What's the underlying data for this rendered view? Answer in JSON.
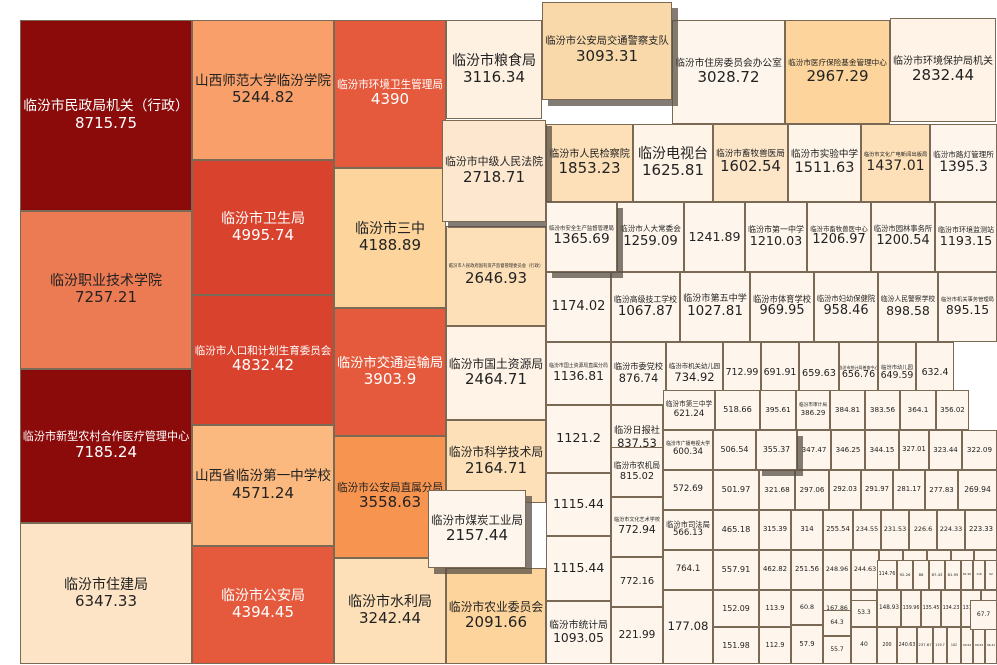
{
  "chart_data": {
    "type": "treemap",
    "title": "",
    "items": [
      {
        "name": "临汾市民政局机关（行政）",
        "value": 8715.75,
        "color": "#8b0a0a"
      },
      {
        "name": "临汾职业技术学院",
        "value": 7257.21,
        "color": "#ec7a52"
      },
      {
        "name": "临汾市新型农村合作医疗管理中心",
        "value": 7185.24,
        "color": "#8b0a0a"
      },
      {
        "name": "临汾市住建局",
        "value": 6347.33,
        "color": "#fde4c6"
      },
      {
        "name": "山西师范大学临汾学院",
        "value": 5244.82,
        "color": "#f89f6a"
      },
      {
        "name": "临汾市卫生局",
        "value": 4995.74,
        "color": "#d9432e"
      },
      {
        "name": "临汾市人口和计划生育委员会",
        "value": 4832.42,
        "color": "#d9432e"
      },
      {
        "name": "山西省临汾第一中学校",
        "value": 4571.24,
        "color": "#fbb97f"
      },
      {
        "name": "临汾市公安局",
        "value": 4394.45,
        "color": "#e55a3c"
      },
      {
        "name": "临汾市环境卫生管理局",
        "value": 4390,
        "color": "#e55a3c"
      },
      {
        "name": "临汾市三中",
        "value": 4188.89,
        "color": "#fcd49c"
      },
      {
        "name": "临汾市交通运输局",
        "value": 3903.9,
        "color": "#e55a3c"
      },
      {
        "name": "临汾市公安局直属分局",
        "value": 3558.63,
        "color": "#f7944f"
      },
      {
        "name": "临汾市水利局",
        "value": 3242.44,
        "color": "#fde0b8"
      },
      {
        "name": "临汾市粮食局",
        "value": 3116.34,
        "color": "#fef1e1"
      },
      {
        "name": "临汾市公安局交通警察支队",
        "value": 3093.31,
        "color": "#f9d9aa"
      },
      {
        "name": "临汾市住房委员会办公室",
        "value": 3028.72,
        "color": "#fef6ec"
      },
      {
        "name": "临汾市医疗保险基金管理中心",
        "value": 2967.29,
        "color": "#fcd49c"
      },
      {
        "name": "临汾市环境保护局机关",
        "value": 2832.44,
        "color": "#fef3e6"
      },
      {
        "name": "临汾市中级人民法院",
        "value": 2718.71,
        "color": "#fde8cf"
      },
      {
        "name": "临汾市人民检察院",
        "value": 1853.23,
        "color": "#fde0b8"
      },
      {
        "name": "临汾电视台",
        "value": 1625.81,
        "color": "#fef4e7"
      },
      {
        "name": "临汾市畜牧兽医局",
        "value": 1602.54,
        "color": "#fde6c8"
      },
      {
        "name": "临汾市实验中学",
        "value": 1511.63,
        "color": "#fef4e7"
      },
      {
        "name": "临汾市文化广电新闻出版局",
        "value": 1437.01,
        "color": "#fde0b8"
      },
      {
        "name": "临汾市路灯管理所",
        "value": 1395.3,
        "color": "#fef6ec"
      },
      {
        "name": "临汾市人民政府国有资产监督管理委员会（行政）",
        "value": 2646.93,
        "color": "#fde0b8"
      },
      {
        "name": "临汾市安全生产监督管理局",
        "value": 1365.69,
        "color": "#fef6ec"
      },
      {
        "name": "临汾市人大常委会",
        "value": 1259.09,
        "color": "#fef6ec"
      },
      {
        "name": "",
        "value": 1241.89,
        "color": "#fef6ec"
      },
      {
        "name": "临汾市第一中学",
        "value": 1210.03,
        "color": "#fef6ec"
      },
      {
        "name": "临汾市畜牧兽医中心",
        "value": 1206.97,
        "color": "#fef6ec"
      },
      {
        "name": "临汾市园林事务所",
        "value": 1200.54,
        "color": "#fef6ec"
      },
      {
        "name": "临汾市环境监测站",
        "value": 1193.15,
        "color": "#fef6ec"
      },
      {
        "name": "临汾市国土资源局",
        "value": 2464.71,
        "color": "#fef3e6"
      },
      {
        "name": "",
        "value": 1174.02,
        "color": "#fef6ec"
      },
      {
        "name": "临汾高级技工学校",
        "value": 1067.87,
        "color": "#fef6ec"
      },
      {
        "name": "临汾市第五中学",
        "value": 1027.81,
        "color": "#fef6ec"
      },
      {
        "name": "临汾市体育学校",
        "value": 969.95,
        "color": "#fef6ec"
      },
      {
        "name": "临汾市妇幼保健院",
        "value": 958.46,
        "color": "#fef6ec"
      },
      {
        "name": "临汾人民警察学校",
        "value": 898.58,
        "color": "#fef6ec"
      },
      {
        "name": "临汾市机关事务管理局",
        "value": 895.15,
        "color": "#fef6ec"
      },
      {
        "name": "临汾市科学技术局",
        "value": 2164.71,
        "color": "#fde0b8"
      },
      {
        "name": "临汾市国土资源局直属分局",
        "value": 1136.81,
        "color": "#fef6ec"
      },
      {
        "name": "临汾市委党校",
        "value": 876.74,
        "color": "#fef6ec"
      },
      {
        "name": "临汾市机关幼儿园",
        "value": 734.92,
        "color": "#fef6ec"
      },
      {
        "name": "",
        "value": 712.99,
        "color": "#fef6ec"
      },
      {
        "name": "",
        "value": 691.91,
        "color": "#fef6ec"
      },
      {
        "name": "",
        "value": 659.63,
        "color": "#fef6ec"
      },
      {
        "name": "临汾市统计局普查中心",
        "value": 656.76,
        "color": "#fef6ec"
      },
      {
        "name": "临汾市幼儿园",
        "value": 649.59,
        "color": "#fef6ec"
      },
      {
        "name": "",
        "value": 632.4,
        "color": "#fef6ec"
      },
      {
        "name": "临汾市煤炭工业局",
        "value": 2157.44,
        "color": "#fef6ec"
      },
      {
        "name": "",
        "value": 1121.2,
        "color": "#fef6ec"
      },
      {
        "name": "临汾日报社",
        "value": 837.53,
        "color": "#fef6ec"
      },
      {
        "name": "临汾市第三中学",
        "value": 621.24,
        "color": "#fef6ec"
      },
      {
        "name": "",
        "value": 518.66,
        "color": "#fef6ec"
      },
      {
        "name": "",
        "value": 395.61,
        "color": "#fef6ec"
      },
      {
        "name": "临汾市审计局",
        "value": 386.29,
        "color": "#fef6ec"
      },
      {
        "name": "",
        "value": 384.81,
        "color": "#fef6ec"
      },
      {
        "name": "",
        "value": 383.56,
        "color": "#fef6ec"
      },
      {
        "name": "",
        "value": 364.1,
        "color": "#fef6ec"
      },
      {
        "name": "",
        "value": 356.02,
        "color": "#fef6ec"
      },
      {
        "name": "",
        "value": 1115.44,
        "color": "#fef6ec"
      },
      {
        "name": "临汾市农机局",
        "value": 815.02,
        "color": "#fef6ec"
      },
      {
        "name": "临汾市广播电视大学",
        "value": 600.34,
        "color": "#fef6ec"
      },
      {
        "name": "",
        "value": 506.54,
        "color": "#fef6ec"
      },
      {
        "name": "",
        "value": 355.37,
        "color": "#fef6ec"
      },
      {
        "name": "",
        "value": 347.47,
        "color": "#fef6ec"
      },
      {
        "name": "",
        "value": 346.25,
        "color": "#fef6ec"
      },
      {
        "name": "",
        "value": 344.15,
        "color": "#fef6ec"
      },
      {
        "name": "",
        "value": 327.01,
        "color": "#fef6ec"
      },
      {
        "name": "",
        "value": 323.44,
        "color": "#fef6ec"
      },
      {
        "name": "",
        "value": 322.09,
        "color": "#fef6ec"
      },
      {
        "name": "临汾市农业委员会",
        "value": 2091.66,
        "color": "#fcd49c"
      },
      {
        "name": "",
        "value": 1115.44,
        "color": "#fef6ec"
      },
      {
        "name": "临汾市文化艺术学校",
        "value": 772.94,
        "color": "#fef6ec"
      },
      {
        "name": "",
        "value": 572.69,
        "color": "#fef6ec"
      },
      {
        "name": "",
        "value": 501.97,
        "color": "#fef6ec"
      },
      {
        "name": "",
        "value": 321.68,
        "color": "#fef6ec"
      },
      {
        "name": "",
        "value": 297.06,
        "color": "#fef6ec"
      },
      {
        "name": "",
        "value": 292.03,
        "color": "#fef6ec"
      },
      {
        "name": "",
        "value": 291.97,
        "color": "#fef6ec"
      },
      {
        "name": "",
        "value": 281.17,
        "color": "#fef6ec"
      },
      {
        "name": "",
        "value": 277.83,
        "color": "#fef6ec"
      },
      {
        "name": "",
        "value": 269.94,
        "color": "#fef6ec"
      },
      {
        "name": "临汾市统计局",
        "value": 1093.05,
        "color": "#fef6ec"
      },
      {
        "name": "",
        "value": 772.16,
        "color": "#fef6ec"
      },
      {
        "name": "临汾市司法局",
        "value": 566.13,
        "color": "#fef6ec"
      },
      {
        "name": "",
        "value": 465.18,
        "color": "#fef6ec"
      },
      {
        "name": "",
        "value": 315.39,
        "color": "#fef6ec"
      },
      {
        "name": "",
        "value": 314,
        "color": "#fef6ec"
      },
      {
        "name": "",
        "value": 255.54,
        "color": "#fef6ec"
      },
      {
        "name": "",
        "value": 234.55,
        "color": "#fef6ec"
      },
      {
        "name": "",
        "value": 231.53,
        "color": "#fef6ec"
      },
      {
        "name": "",
        "value": 226.6,
        "color": "#fef6ec"
      },
      {
        "name": "",
        "value": 224.33,
        "color": "#fef6ec"
      },
      {
        "name": "",
        "value": 223.33,
        "color": "#fef6ec"
      },
      {
        "name": "",
        "value": 221.99,
        "color": "#fef6ec"
      },
      {
        "name": "",
        "value": 764.1,
        "color": "#fef6ec"
      },
      {
        "name": "",
        "value": 557.91,
        "color": "#fef6ec"
      },
      {
        "name": "",
        "value": 462.82,
        "color": "#fef6ec"
      },
      {
        "name": "",
        "value": 304.44,
        "color": "#fef6ec"
      },
      {
        "name": "",
        "value": 251.56,
        "color": "#fef6ec"
      },
      {
        "name": "",
        "value": 248.96,
        "color": "#fef6ec"
      },
      {
        "name": "",
        "value": 244.63,
        "color": "#fef6ec"
      },
      {
        "name": "",
        "value": 220.77,
        "color": "#fef6ec"
      },
      {
        "name": "",
        "value": 217.05,
        "color": "#fef6ec"
      },
      {
        "name": "",
        "value": 205.45,
        "color": "#fef6ec"
      },
      {
        "name": "",
        "value": 171.98,
        "color": "#fef6ec"
      },
      {
        "name": "",
        "value": 170.69,
        "color": "#fef6ec"
      },
      {
        "name": "",
        "value": 167.86,
        "color": "#fef6ec"
      },
      {
        "name": "",
        "value": 159.53,
        "color": "#fef6ec"
      },
      {
        "name": "",
        "value": 148.93,
        "color": "#fef6ec"
      },
      {
        "name": "",
        "value": 139.96,
        "color": "#fef6ec"
      },
      {
        "name": "",
        "value": 135.45,
        "color": "#fef6ec"
      },
      {
        "name": "",
        "value": 134.23,
        "color": "#fef6ec"
      },
      {
        "name": "",
        "value": 131.85,
        "color": "#fef6ec"
      },
      {
        "name": "",
        "value": 131.07,
        "color": "#fef6ec"
      },
      {
        "name": "",
        "value": 126.05,
        "color": "#fef6ec"
      },
      {
        "name": "",
        "value": 123.37,
        "color": "#fef6ec"
      },
      {
        "name": "",
        "value": 122.8,
        "color": "#fef6ec"
      },
      {
        "name": "",
        "value": 121.51,
        "color": "#fef6ec"
      },
      {
        "name": "",
        "value": 119.7,
        "color": "#fef6ec"
      },
      {
        "name": "",
        "value": 102,
        "color": "#fef6ec"
      },
      {
        "name": "",
        "value": 99.64,
        "color": "#fef6ec"
      },
      {
        "name": "",
        "value": 99.63,
        "color": "#fef6ec"
      },
      {
        "name": "",
        "value": 96.41,
        "color": "#fef6ec"
      },
      {
        "name": "",
        "value": 96.06,
        "color": "#fef6ec"
      },
      {
        "name": "",
        "value": 114.76,
        "color": "#fef6ec"
      },
      {
        "name": "",
        "value": 92.26,
        "color": "#fef6ec"
      },
      {
        "name": "",
        "value": 88,
        "color": "#fef6ec"
      },
      {
        "name": "",
        "value": 87.43,
        "color": "#fef6ec"
      },
      {
        "name": "",
        "value": 81.95,
        "color": "#fef6ec"
      },
      {
        "name": "",
        "value": 81.95,
        "color": "#fef6ec"
      },
      {
        "name": "",
        "value": 116,
        "color": "#fef6ec"
      },
      {
        "name": "",
        "value": 92,
        "color": "#fef6ec"
      },
      {
        "name": "",
        "value": 72.67,
        "color": "#fef6ec"
      },
      {
        "name": "",
        "value": 67.7,
        "color": "#fef6ec"
      },
      {
        "name": "",
        "value": 64.3,
        "color": "#fef6ec"
      },
      {
        "name": "",
        "value": 60.8,
        "color": "#fef6ec"
      },
      {
        "name": "",
        "value": 57.9,
        "color": "#fef6ec"
      },
      {
        "name": "",
        "value": 55.7,
        "color": "#fef6ec"
      },
      {
        "name": "",
        "value": 53.3,
        "color": "#fef6ec"
      },
      {
        "name": "",
        "value": 40,
        "color": "#fef6ec"
      },
      {
        "name": "",
        "value": 200,
        "color": "#fef6ec"
      },
      {
        "name": "",
        "value": 240.63,
        "color": "#fef6ec"
      },
      {
        "name": "",
        "value": 237.67,
        "color": "#fef6ec"
      },
      {
        "name": "",
        "value": 177.08,
        "color": "#fef6ec"
      },
      {
        "name": "",
        "value": 152.09,
        "color": "#fef6ec"
      },
      {
        "name": "",
        "value": 151.98,
        "color": "#fef6ec"
      },
      {
        "name": "",
        "value": 113.9,
        "color": "#fef6ec"
      },
      {
        "name": "",
        "value": 112.9,
        "color": "#fef6ec"
      },
      {
        "name": "",
        "value": 91.9,
        "color": "#fef6ec"
      },
      {
        "name": "临汾市气象局",
        "value": 518.85,
        "color": "#fef6ec"
      },
      {
        "name": "",
        "value": 419.35,
        "color": "#fef6ec"
      },
      {
        "name": "",
        "value": 413.6,
        "color": "#fef6ec"
      },
      {
        "name": "",
        "value": 302.95,
        "color": "#fef6ec"
      },
      {
        "name": "",
        "value": 301.49,
        "color": "#fef6ec"
      }
    ]
  }
}
